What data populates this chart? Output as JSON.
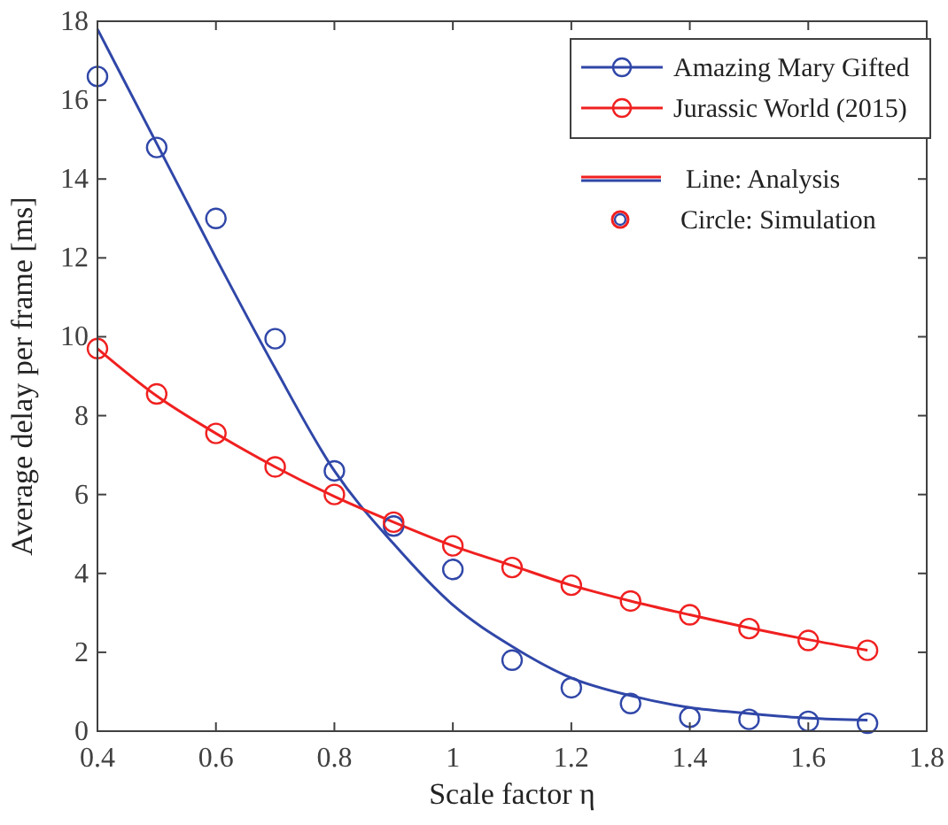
{
  "chart_data": {
    "type": "line",
    "xlabel": "Scale factor η",
    "ylabel": "Average delay per frame [ms]",
    "x": [
      0.4,
      0.5,
      0.6,
      0.7,
      0.8,
      0.9,
      1.0,
      1.1,
      1.2,
      1.3,
      1.4,
      1.5,
      1.6,
      1.7
    ],
    "series": [
      {
        "name": "Amazing Mary Gifted",
        "color": "#3047a8",
        "marker": "none",
        "values": [
          17.8,
          14.9,
          12.0,
          9.2,
          6.6,
          4.75,
          3.2,
          2.15,
          1.35,
          0.9,
          0.6,
          0.45,
          0.33,
          0.28
        ]
      },
      {
        "name": "Jurassic World (2015)",
        "color": "#f02020",
        "marker": "none",
        "values": [
          9.7,
          8.5,
          7.55,
          6.7,
          5.95,
          5.3,
          4.7,
          4.2,
          3.7,
          3.3,
          2.95,
          2.62,
          2.32,
          2.05
        ]
      },
      {
        "type": "scatter",
        "color": "#3047a8",
        "marker": "circle",
        "values": [
          16.6,
          14.8,
          13.0,
          9.95,
          6.6,
          5.2,
          4.1,
          1.8,
          1.1,
          0.7,
          0.35,
          0.3,
          0.25,
          0.2
        ]
      },
      {
        "type": "scatter",
        "color": "#f02020",
        "marker": "circle",
        "values": [
          9.7,
          8.55,
          7.55,
          6.7,
          6.0,
          5.3,
          4.7,
          4.15,
          3.7,
          3.3,
          2.95,
          2.6,
          2.3,
          2.05
        ]
      }
    ],
    "xlim": [
      0.4,
      1.8
    ],
    "xticks": [
      0.4,
      0.6,
      0.8,
      1,
      1.2,
      1.4,
      1.6,
      1.8
    ],
    "ylim": [
      0,
      18
    ],
    "yticks": [
      0,
      2,
      4,
      6,
      8,
      10,
      12,
      14,
      16,
      18
    ],
    "grid": false,
    "legend": "top right",
    "annotations": [
      "Line: Analysis",
      "Circle: Simulation"
    ]
  }
}
